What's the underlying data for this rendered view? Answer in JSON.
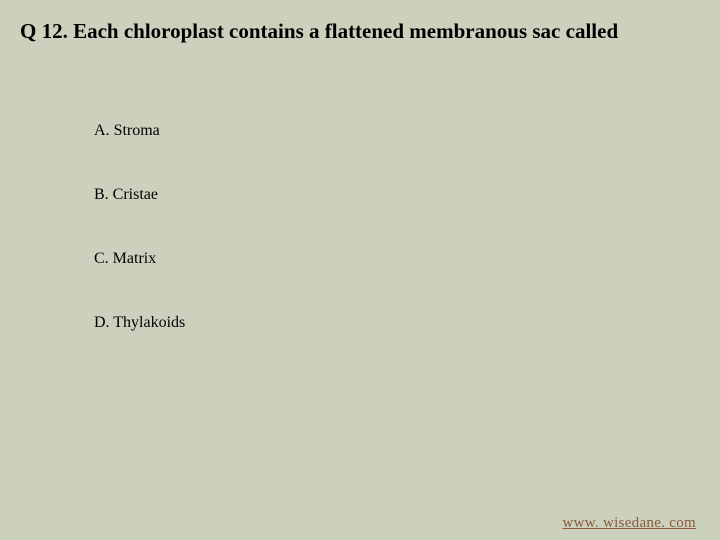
{
  "background_color": "#ccd1bd",
  "text_color": "#000000",
  "link_color": "#8a5a3a",
  "question": {
    "number": "Q 12.",
    "text": "Each chloroplast contains a flattened membranous sac called",
    "fontsize": 21,
    "fontweight": "bold"
  },
  "options": [
    {
      "letter": "A.",
      "text": "Stroma"
    },
    {
      "letter": "B.",
      "text": "Cristae"
    },
    {
      "letter": "C.",
      "text": "Matrix"
    },
    {
      "letter": "D.",
      "text": "Thylakoids"
    }
  ],
  "option_fontsize": 16,
  "footer": {
    "url_text": "www. wisedane. com"
  }
}
